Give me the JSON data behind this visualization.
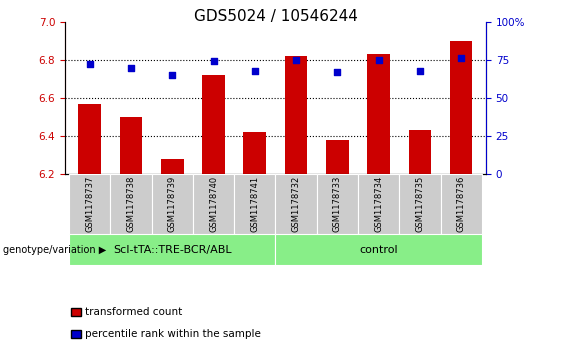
{
  "title": "GDS5024 / 10546244",
  "samples": [
    "GSM1178737",
    "GSM1178738",
    "GSM1178739",
    "GSM1178740",
    "GSM1178741",
    "GSM1178732",
    "GSM1178733",
    "GSM1178734",
    "GSM1178735",
    "GSM1178736"
  ],
  "bar_values": [
    6.57,
    6.5,
    6.28,
    6.72,
    6.42,
    6.82,
    6.38,
    6.83,
    6.43,
    6.9
  ],
  "dot_values": [
    72,
    70,
    65,
    74,
    68,
    75,
    67,
    75,
    68,
    76
  ],
  "bar_color": "#cc0000",
  "dot_color": "#0000cc",
  "ylim_left": [
    6.2,
    7.0
  ],
  "ylim_right": [
    0,
    100
  ],
  "yticks_left": [
    6.2,
    6.4,
    6.6,
    6.8,
    7.0
  ],
  "yticks_right": [
    0,
    25,
    50,
    75,
    100
  ],
  "ytick_labels_right": [
    "0",
    "25",
    "50",
    "75",
    "100%"
  ],
  "group1_label": "ScI-tTA::TRE-BCR/ABL",
  "group2_label": "control",
  "group1_indices": [
    0,
    1,
    2,
    3,
    4
  ],
  "group2_indices": [
    5,
    6,
    7,
    8,
    9
  ],
  "group_color": "#88ee88",
  "legend_bar_label": "transformed count",
  "legend_dot_label": "percentile rank within the sample",
  "genotype_label": "genotype/variation",
  "bar_bottom": 6.2,
  "title_fontsize": 11,
  "tick_fontsize": 7.5,
  "sample_fontsize": 6.0,
  "group_fontsize": 8.0,
  "legend_fontsize": 7.5
}
